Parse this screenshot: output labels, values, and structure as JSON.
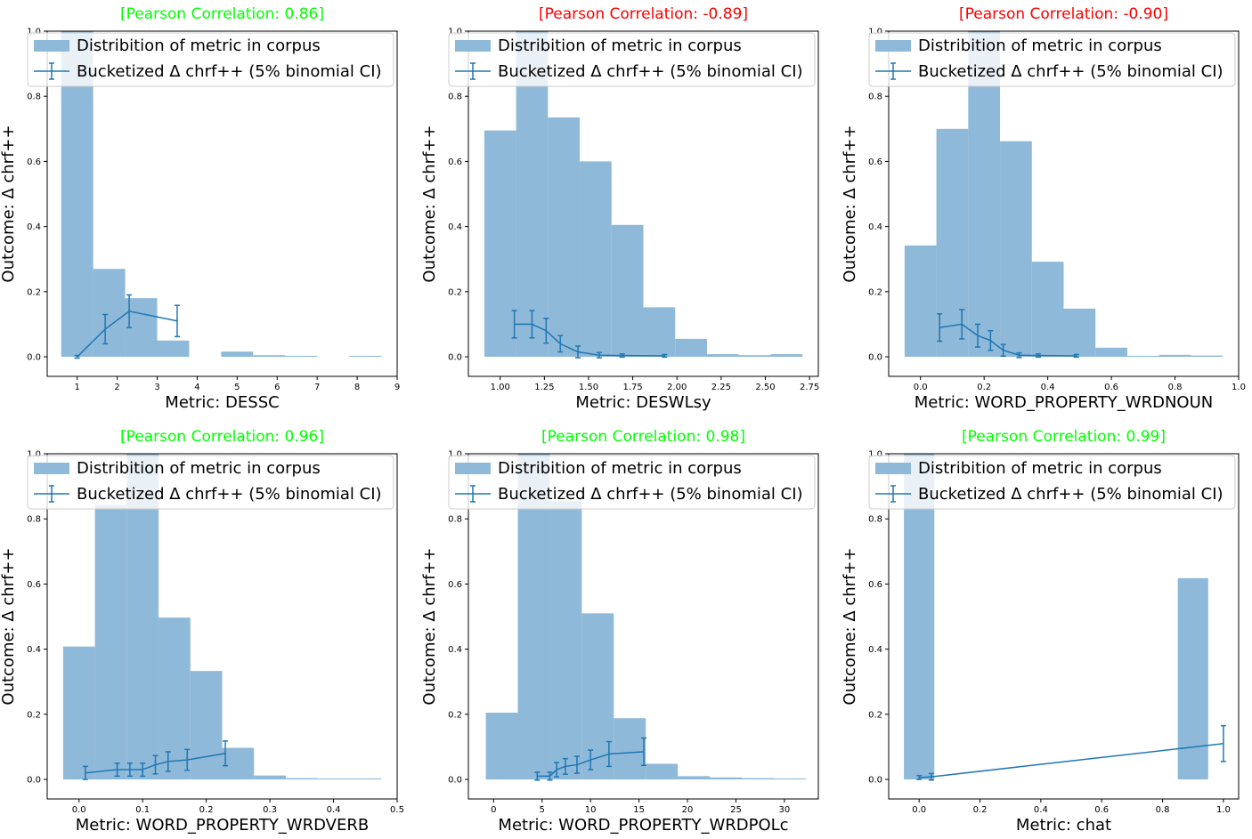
{
  "colors": {
    "positive": "#00ff00",
    "negative": "#ff0000",
    "bar": "#8fb9d8",
    "line": "#1f77b4"
  },
  "legend": {
    "hist_label": "Distribition of metric in corpus",
    "line_label": "Bucketized Δ chrf++ (5% binomial CI)"
  },
  "chart_data": [
    {
      "type": "bar",
      "title": "[Pearson Correlation: 0.86]",
      "title_sign": "positive",
      "xlabel": "Metric: DESSC",
      "ylabel": "Outcome: Δ chrf++",
      "xlim": [
        0.25,
        9.0
      ],
      "ylim": [
        -0.06,
        1.0
      ],
      "xticks": [
        1,
        2,
        3,
        4,
        5,
        6,
        7,
        8,
        9
      ],
      "xtick_labels": [
        "1",
        "2",
        "3",
        "4",
        "5",
        "6",
        "7",
        "8",
        "9"
      ],
      "yticks": [
        0.0,
        0.2,
        0.4,
        0.6,
        0.8,
        1.0
      ],
      "ytick_labels": [
        "0.0",
        "0.2",
        "0.4",
        "0.6",
        "0.8",
        "1.0"
      ],
      "histogram": {
        "bins": [
          [
            0.6,
            1.4
          ],
          [
            1.4,
            2.2
          ],
          [
            2.2,
            3.0
          ],
          [
            3.0,
            3.8
          ],
          [
            3.8,
            4.6
          ],
          [
            4.6,
            5.4
          ],
          [
            5.4,
            6.2
          ],
          [
            6.2,
            7.0
          ],
          [
            7.0,
            7.8
          ],
          [
            7.8,
            8.6
          ]
        ],
        "heights": [
          1.0,
          0.27,
          0.18,
          0.05,
          0.0,
          0.016,
          0.005,
          0.003,
          0.0,
          0.003
        ]
      },
      "series": [
        {
          "name": "Bucketized Δ chrf++",
          "x": [
            1.0,
            1.7,
            2.3,
            3.5
          ],
          "y": [
            0.0,
            0.085,
            0.14,
            0.11
          ],
          "err": [
            0.004,
            0.045,
            0.05,
            0.048
          ]
        }
      ]
    },
    {
      "type": "bar",
      "title": "[Pearson Correlation: -0.89]",
      "title_sign": "negative",
      "xlabel": "Metric: DESWLsy",
      "ylabel": "Outcome: Δ chrf++",
      "xlim": [
        0.82,
        2.8
      ],
      "ylim": [
        -0.06,
        1.0
      ],
      "xticks": [
        1.0,
        1.25,
        1.5,
        1.75,
        2.0,
        2.25,
        2.5,
        2.75
      ],
      "xtick_labels": [
        "1.00",
        "1.25",
        "1.50",
        "1.75",
        "2.00",
        "2.25",
        "2.50",
        "2.75"
      ],
      "yticks": [
        0.0,
        0.2,
        0.4,
        0.6,
        0.8,
        1.0
      ],
      "ytick_labels": [
        "0.0",
        "0.2",
        "0.4",
        "0.6",
        "0.8",
        "1.0"
      ],
      "histogram": {
        "bins": [
          [
            0.91,
            1.09
          ],
          [
            1.09,
            1.27
          ],
          [
            1.27,
            1.45
          ],
          [
            1.45,
            1.63
          ],
          [
            1.63,
            1.81
          ],
          [
            1.81,
            1.99
          ],
          [
            1.99,
            2.17
          ],
          [
            2.17,
            2.35
          ],
          [
            2.35,
            2.53
          ],
          [
            2.53,
            2.71
          ]
        ],
        "heights": [
          0.695,
          1.0,
          0.735,
          0.6,
          0.405,
          0.152,
          0.055,
          0.008,
          0.005,
          0.008
        ]
      },
      "series": [
        {
          "name": "Bucketized Δ chrf++",
          "x": [
            1.08,
            1.18,
            1.26,
            1.34,
            1.44,
            1.56,
            1.69,
            1.93
          ],
          "y": [
            0.1,
            0.1,
            0.08,
            0.04,
            0.015,
            0.005,
            0.004,
            0.003
          ],
          "err": [
            0.042,
            0.042,
            0.038,
            0.025,
            0.018,
            0.008,
            0.005,
            0.004
          ]
        }
      ]
    },
    {
      "type": "bar",
      "title": "[Pearson Correlation: -0.90]",
      "title_sign": "negative",
      "xlabel": "Metric: WORD_PROPERTY_WRDNOUN",
      "ylabel": "Outcome: Δ chrf++",
      "xlim": [
        -0.1,
        1.0
      ],
      "ylim": [
        -0.06,
        1.0
      ],
      "xticks": [
        0.0,
        0.2,
        0.4,
        0.6,
        0.8,
        1.0
      ],
      "xtick_labels": [
        "0.0",
        "0.2",
        "0.4",
        "0.6",
        "0.8",
        "1.0"
      ],
      "yticks": [
        0.0,
        0.2,
        0.4,
        0.6,
        0.8,
        1.0
      ],
      "ytick_labels": [
        "0.0",
        "0.2",
        "0.4",
        "0.6",
        "0.8",
        "1.0"
      ],
      "histogram": {
        "bins": [
          [
            -0.05,
            0.05
          ],
          [
            0.05,
            0.15
          ],
          [
            0.15,
            0.25
          ],
          [
            0.25,
            0.35
          ],
          [
            0.35,
            0.45
          ],
          [
            0.45,
            0.55
          ],
          [
            0.55,
            0.65
          ],
          [
            0.65,
            0.75
          ],
          [
            0.75,
            0.85
          ],
          [
            0.85,
            0.95
          ]
        ],
        "heights": [
          0.342,
          0.7,
          1.0,
          0.662,
          0.292,
          0.148,
          0.028,
          0.003,
          0.006,
          0.004
        ]
      },
      "series": [
        {
          "name": "Bucketized Δ chrf++",
          "x": [
            0.06,
            0.13,
            0.18,
            0.22,
            0.26,
            0.31,
            0.37,
            0.49
          ],
          "y": [
            0.09,
            0.1,
            0.065,
            0.05,
            0.02,
            0.005,
            0.004,
            0.003
          ],
          "err": [
            0.042,
            0.045,
            0.035,
            0.03,
            0.018,
            0.007,
            0.005,
            0.004
          ]
        }
      ]
    },
    {
      "type": "bar",
      "title": "[Pearson Correlation: 0.96]",
      "title_sign": "positive",
      "xlabel": "Metric: WORD_PROPERTY_WRDVERB",
      "ylabel": "Outcome: Δ chrf++",
      "xlim": [
        -0.05,
        0.5
      ],
      "ylim": [
        -0.06,
        1.0
      ],
      "xticks": [
        0.0,
        0.1,
        0.2,
        0.3,
        0.4,
        0.5
      ],
      "xtick_labels": [
        "0.0",
        "0.1",
        "0.2",
        "0.3",
        "0.4",
        "0.5"
      ],
      "yticks": [
        0.0,
        0.2,
        0.4,
        0.6,
        0.8,
        1.0
      ],
      "ytick_labels": [
        "0.0",
        "0.2",
        "0.4",
        "0.6",
        "0.8",
        "1.0"
      ],
      "histogram": {
        "bins": [
          [
            -0.025,
            0.025
          ],
          [
            0.025,
            0.075
          ],
          [
            0.075,
            0.125
          ],
          [
            0.125,
            0.175
          ],
          [
            0.175,
            0.225
          ],
          [
            0.225,
            0.275
          ],
          [
            0.275,
            0.325
          ],
          [
            0.325,
            0.375
          ],
          [
            0.375,
            0.425
          ],
          [
            0.425,
            0.475
          ]
        ],
        "heights": [
          0.408,
          0.843,
          1.0,
          0.497,
          0.333,
          0.097,
          0.012,
          0.004,
          0.003,
          0.003
        ]
      },
      "series": [
        {
          "name": "Bucketized Δ chrf++",
          "x": [
            0.01,
            0.06,
            0.08,
            0.1,
            0.12,
            0.14,
            0.17,
            0.23
          ],
          "y": [
            0.02,
            0.03,
            0.03,
            0.03,
            0.045,
            0.055,
            0.06,
            0.08
          ],
          "err": [
            0.02,
            0.02,
            0.02,
            0.02,
            0.028,
            0.03,
            0.032,
            0.038
          ]
        }
      ]
    },
    {
      "type": "bar",
      "title": "[Pearson Correlation: 0.98]",
      "title_sign": "positive",
      "xlabel": "Metric: WORD_PROPERTY_WRDPOLc",
      "ylabel": "Outcome: Δ chrf++",
      "xlim": [
        -2.6,
        33.5
      ],
      "ylim": [
        -0.06,
        1.0
      ],
      "xticks": [
        0,
        5,
        10,
        15,
        20,
        25,
        30
      ],
      "xtick_labels": [
        "0",
        "5",
        "10",
        "15",
        "20",
        "25",
        "30"
      ],
      "yticks": [
        0.0,
        0.2,
        0.4,
        0.6,
        0.8,
        1.0
      ],
      "ytick_labels": [
        "0.0",
        "0.2",
        "0.4",
        "0.6",
        "0.8",
        "1.0"
      ],
      "histogram": {
        "bins": [
          [
            -0.8,
            2.5
          ],
          [
            2.5,
            5.8
          ],
          [
            5.8,
            9.1
          ],
          [
            9.1,
            12.4
          ],
          [
            12.4,
            15.7
          ],
          [
            15.7,
            19.0
          ],
          [
            19.0,
            22.3
          ],
          [
            22.3,
            25.6
          ],
          [
            25.6,
            28.9
          ],
          [
            28.9,
            32.2
          ]
        ],
        "heights": [
          0.205,
          1.0,
          0.855,
          0.51,
          0.188,
          0.048,
          0.01,
          0.006,
          0.004,
          0.003
        ]
      },
      "series": [
        {
          "name": "Bucketized Δ chrf++",
          "x": [
            4.5,
            5.8,
            6.5,
            7.4,
            8.6,
            10.0,
            11.9,
            15.5
          ],
          "y": [
            0.01,
            0.01,
            0.03,
            0.04,
            0.045,
            0.06,
            0.078,
            0.085
          ],
          "err": [
            0.012,
            0.012,
            0.022,
            0.024,
            0.026,
            0.03,
            0.038,
            0.042
          ]
        }
      ]
    },
    {
      "type": "bar",
      "title": "[Pearson Correlation: 0.99]",
      "title_sign": "positive",
      "xlabel": "Metric: chat",
      "ylabel": "Outcome: Δ chrf++",
      "xlim": [
        -0.1,
        1.05
      ],
      "ylim": [
        -0.06,
        1.0
      ],
      "xticks": [
        0.0,
        0.2,
        0.4,
        0.6,
        0.8,
        1.0
      ],
      "xtick_labels": [
        "0.0",
        "0.2",
        "0.4",
        "0.6",
        "0.8",
        "1.0"
      ],
      "yticks": [
        0.0,
        0.2,
        0.4,
        0.6,
        0.8,
        1.0
      ],
      "ytick_labels": [
        "0.0",
        "0.2",
        "0.4",
        "0.6",
        "0.8",
        "1.0"
      ],
      "histogram": {
        "bins": [
          [
            -0.05,
            0.05
          ],
          [
            0.05,
            0.15
          ],
          [
            0.15,
            0.25
          ],
          [
            0.25,
            0.35
          ],
          [
            0.35,
            0.45
          ],
          [
            0.45,
            0.55
          ],
          [
            0.55,
            0.65
          ],
          [
            0.65,
            0.75
          ],
          [
            0.75,
            0.85
          ],
          [
            0.85,
            0.95
          ]
        ],
        "heights": [
          1.0,
          0,
          0,
          0,
          0,
          0,
          0,
          0,
          0,
          0.618
        ]
      },
      "series": [
        {
          "name": "Bucketized Δ chrf++",
          "x": [
            0.0,
            0.04,
            1.0
          ],
          "y": [
            0.006,
            0.008,
            0.11
          ],
          "err": [
            0.006,
            0.01,
            0.055
          ]
        }
      ]
    }
  ]
}
